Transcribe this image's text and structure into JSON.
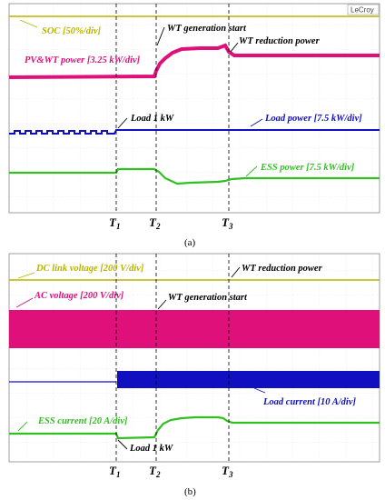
{
  "brand": "LeCroy",
  "chart_data": [
    {
      "type": "line",
      "panel": "(a)",
      "time_markers": [
        "T1",
        "T2",
        "T3"
      ],
      "annotations": [
        "WT generation start",
        "WT reduction power",
        "Load 1 kW"
      ],
      "series": [
        {
          "name": "SOC [50%/div]",
          "color": "#b8b400",
          "x": [
            0,
            100
          ],
          "y": [
            100,
            100
          ]
        },
        {
          "name": "PV&WT power [3.25 kW/div]",
          "color": "#e0107a",
          "x": [
            0,
            42,
            43,
            46,
            52,
            60,
            63,
            64,
            100
          ],
          "y": [
            0,
            0.2,
            1.1,
            1.7,
            2.3,
            2.3,
            2.5,
            1.8,
            1.8
          ]
        },
        {
          "name": "Load power [7.5 kW/div]",
          "color": "#1010c0",
          "x": [
            0,
            29,
            30,
            100
          ],
          "y": [
            -0.2,
            -0.2,
            0.2,
            0.2
          ]
        },
        {
          "name": "ESS power [7.5 kW/div]",
          "color": "#30c020",
          "x": [
            0,
            29,
            30,
            42,
            45,
            50,
            60,
            63,
            66,
            100
          ],
          "y": [
            0,
            0,
            0.2,
            0.2,
            -0.2,
            -0.6,
            -0.5,
            -0.4,
            -0.2,
            -0.2
          ]
        }
      ]
    },
    {
      "type": "line",
      "panel": "(b)",
      "time_markers": [
        "T1",
        "T2",
        "T3"
      ],
      "annotations": [
        "WT generation start",
        "WT reduction power",
        "Load 1 kW"
      ],
      "series": [
        {
          "name": "DC link voltage [200 V/div]",
          "color": "#b8b400",
          "x": [
            0,
            100
          ],
          "y": [
            0,
            0
          ]
        },
        {
          "name": "AC voltage [200 V/div]",
          "color": "#e0107a",
          "x": [
            0,
            100
          ],
          "y": [
            0,
            0
          ]
        },
        {
          "name": "Load current [10 A/div]",
          "color": "#1010c0",
          "x": [
            0,
            30,
            100
          ],
          "y": [
            0,
            1,
            1
          ]
        },
        {
          "name": "ESS current [20 A/div]",
          "color": "#30c020",
          "x": [
            0,
            29,
            30,
            42,
            45,
            50,
            58,
            62,
            64,
            100
          ],
          "y": [
            0,
            0,
            -0.4,
            -0.3,
            0.4,
            0.9,
            1.0,
            0.8,
            0.4,
            0.4
          ]
        }
      ]
    }
  ],
  "panel_a": {
    "soc": "SOC [50%/div]",
    "pvwt": "PV&WT power [3.25 kW/div]",
    "load": "Load power [7.5 kW/div]",
    "ess": "ESS power [7.5 kW/div]",
    "wt_start": "WT generation start",
    "wt_reduce": "WT reduction power",
    "load1kw": "Load 1 kW",
    "caption": "(a)"
  },
  "panel_b": {
    "dc": "DC link voltage [200 V/div]",
    "ac": "AC voltage [200 V/div]",
    "load": "Load current [10 A/div]",
    "ess": "ESS current [20 A/div]",
    "wt_start": "WT generation start",
    "wt_reduce": "WT reduction power",
    "load1kw": "Load 1 kW",
    "caption": "(b)"
  },
  "markers": {
    "t1": "T",
    "t1sub": "1",
    "t2": "T",
    "t2sub": "2",
    "t3": "T",
    "t3sub": "3"
  }
}
